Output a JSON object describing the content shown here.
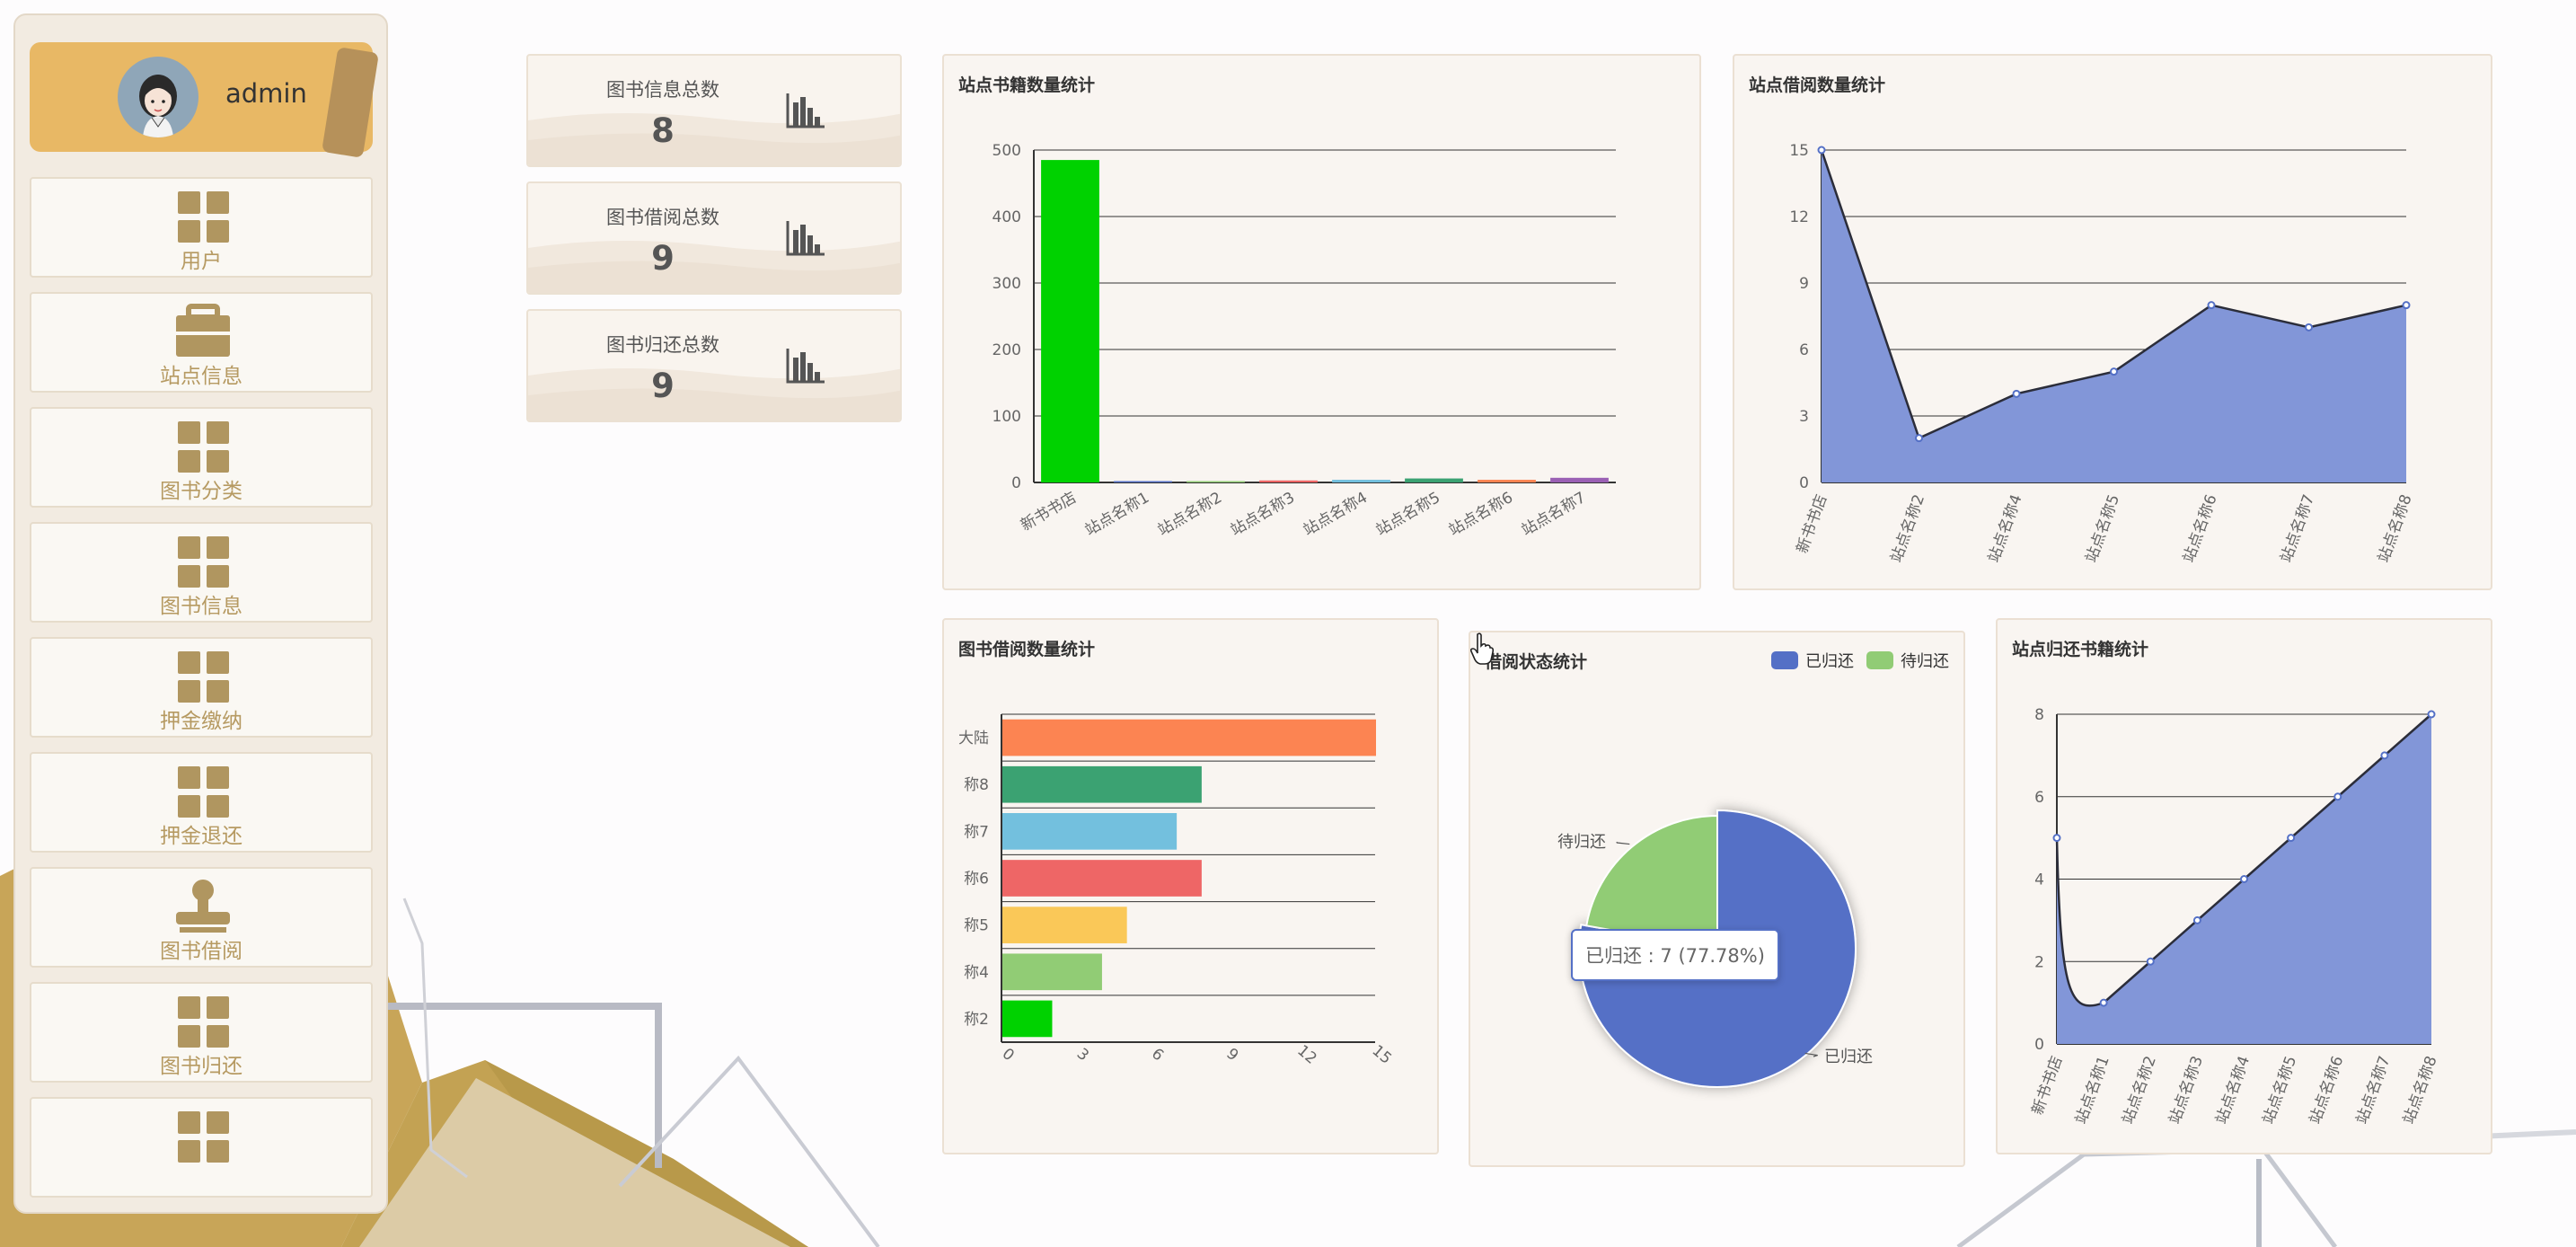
{
  "sidebar": {
    "username": "admin",
    "items": [
      {
        "label": "用户",
        "icon": "grid-icon"
      },
      {
        "label": "站点信息",
        "icon": "briefcase-icon"
      },
      {
        "label": "图书分类",
        "icon": "grid-icon"
      },
      {
        "label": "图书信息",
        "icon": "grid-icon"
      },
      {
        "label": "押金缴纳",
        "icon": "grid-icon"
      },
      {
        "label": "押金退还",
        "icon": "grid-icon"
      },
      {
        "label": "图书借阅",
        "icon": "stamp-icon"
      },
      {
        "label": "图书归还",
        "icon": "grid-icon"
      },
      {
        "label": "",
        "icon": "grid-icon"
      }
    ]
  },
  "stats": [
    {
      "label": "图书信息总数",
      "value": "8",
      "icon": "bar-chart-icon"
    },
    {
      "label": "图书借阅总数",
      "value": "9",
      "icon": "bar-chart-icon"
    },
    {
      "label": "图书归还总数",
      "value": "9",
      "icon": "bar-chart-icon"
    }
  ],
  "colors": {
    "accent": "#e8b865",
    "menu_icon": "#b09660",
    "green": "#00d200",
    "blue": "#5470c6",
    "area_fill": "#8296d8",
    "pie_returned": "#5470c6",
    "pie_pending": "#91cc75"
  },
  "chart_data": [
    {
      "id": "site-books",
      "type": "bar",
      "title": "站点书籍数量统计",
      "categories": [
        "新书书店",
        "站点名称1",
        "站点名称2",
        "站点名称3",
        "站点名称4",
        "站点名称5",
        "站点名称6",
        "站点名称7"
      ],
      "values": [
        485,
        1,
        2,
        3,
        4,
        6,
        4,
        7
      ],
      "colors": [
        "#00d200",
        "#5470c6",
        "#91cc75",
        "#ee6666",
        "#73c0de",
        "#3ba272",
        "#fc8452",
        "#9a60b4"
      ],
      "y_ticks": [
        "0",
        "100",
        "200",
        "300",
        "400",
        "500"
      ],
      "ylim": [
        0,
        500
      ]
    },
    {
      "id": "site-borrow",
      "type": "area",
      "title": "站点借阅数量统计",
      "categories": [
        "新书书店",
        "站点名称2",
        "站点名称4",
        "站点名称5",
        "站点名称6",
        "站点名称7",
        "站点名称8"
      ],
      "values": [
        15,
        2,
        4,
        5,
        8,
        7,
        8
      ],
      "y_ticks": [
        "0",
        "3",
        "6",
        "9",
        "12",
        "15"
      ],
      "ylim": [
        0,
        15
      ]
    },
    {
      "id": "book-borrow",
      "type": "bar",
      "orientation": "horizontal",
      "title": "图书借阅数量统计",
      "categories": [
        "称2",
        "称4",
        "称5",
        "称6",
        "称7",
        "称8",
        "大陆"
      ],
      "values": [
        2,
        4,
        5,
        8,
        7,
        8,
        15
      ],
      "colors": [
        "#00d200",
        "#91cc75",
        "#fac858",
        "#ee6666",
        "#73c0de",
        "#3ba272",
        "#fc8452"
      ],
      "x_ticks": [
        "0",
        "3",
        "6",
        "9",
        "12",
        "15"
      ],
      "xlim": [
        0,
        15
      ]
    },
    {
      "id": "borrow-status",
      "type": "pie",
      "title": "借阅状态统计",
      "labels": [
        "已归还",
        "待归还"
      ],
      "values": [
        7,
        2
      ],
      "colors": [
        "#5470c6",
        "#91cc75"
      ],
      "legend": "top-right",
      "tooltip": "已归还 : 7 (77.78%)"
    },
    {
      "id": "site-return",
      "type": "area",
      "title": "站点归还书籍统计",
      "categories": [
        "新书书店",
        "站点名称1",
        "站点名称2",
        "站点名称3",
        "站点名称4",
        "站点名称5",
        "站点名称6",
        "站点名称7",
        "站点名称8"
      ],
      "values": [
        5,
        1,
        2,
        3,
        4,
        5,
        6,
        7,
        8
      ],
      "y_ticks": [
        "0",
        "2",
        "4",
        "6",
        "8"
      ],
      "ylim": [
        0,
        8
      ]
    }
  ]
}
